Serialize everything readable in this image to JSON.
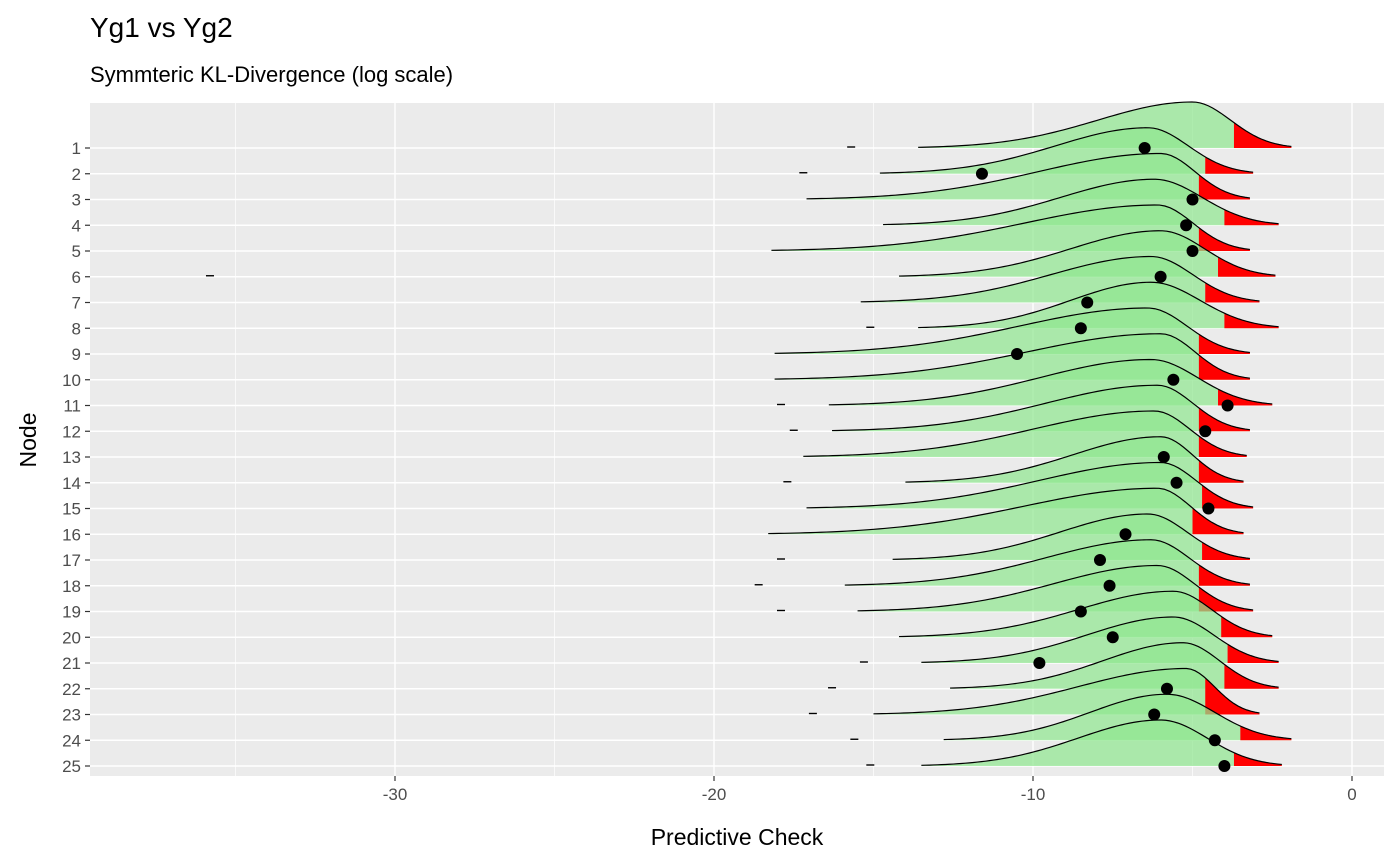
{
  "title": "Yg1 vs Yg2",
  "subtitle": "Symmteric KL-Divergence (log scale)",
  "chart_data": {
    "type": "ridgeline",
    "xlabel": "Predictive Check",
    "ylabel": "Node",
    "xlim": [
      -39.5,
      1
    ],
    "x_ticks": [
      -30,
      -20,
      -10,
      0
    ],
    "x_tick_labels": [
      "-30",
      "-20",
      "-10",
      "0"
    ],
    "grid": true,
    "colors": {
      "fill": "#90e690",
      "tail": "#ff0000",
      "point": "#000000",
      "panel": "#ebebeb"
    },
    "nodes": [
      {
        "label": "1",
        "observed": -6.5,
        "mode": -5.0,
        "min": -13.6,
        "max": -1.9,
        "tail_start": -3.7,
        "outlier": -15.7
      },
      {
        "label": "2",
        "observed": -11.6,
        "mode": -6.4,
        "min": -14.8,
        "max": -3.1,
        "tail_start": -4.6,
        "outlier": -17.2
      },
      {
        "label": "3",
        "observed": -5.0,
        "mode": -6.0,
        "min": -17.1,
        "max": -3.2,
        "tail_start": -4.8,
        "outlier": null
      },
      {
        "label": "4",
        "observed": -5.2,
        "mode": -6.2,
        "min": -14.7,
        "max": -2.3,
        "tail_start": -4.0,
        "outlier": null
      },
      {
        "label": "5",
        "observed": -5.0,
        "mode": -6.1,
        "min": -18.2,
        "max": -3.2,
        "tail_start": -4.8,
        "outlier": null
      },
      {
        "label": "6",
        "observed": -6.0,
        "mode": -6.0,
        "min": -14.2,
        "max": -2.4,
        "tail_start": -4.2,
        "outlier": -35.8
      },
      {
        "label": "7",
        "observed": -8.3,
        "mode": -6.3,
        "min": -15.4,
        "max": -2.9,
        "tail_start": -4.6,
        "outlier": null
      },
      {
        "label": "8",
        "observed": -8.5,
        "mode": -6.3,
        "min": -13.6,
        "max": -2.3,
        "tail_start": -4.0,
        "outlier": -15.1
      },
      {
        "label": "9",
        "observed": -10.5,
        "mode": -6.4,
        "min": -18.1,
        "max": -3.2,
        "tail_start": -4.8,
        "outlier": null
      },
      {
        "label": "10",
        "observed": -5.6,
        "mode": -6.0,
        "min": -18.1,
        "max": -3.2,
        "tail_start": -4.8,
        "outlier": null
      },
      {
        "label": "11",
        "observed": -3.9,
        "mode": -6.3,
        "min": -16.4,
        "max": -2.5,
        "tail_start": -4.2,
        "outlier": -17.9
      },
      {
        "label": "12",
        "observed": -4.6,
        "mode": -6.1,
        "min": -16.3,
        "max": -3.2,
        "tail_start": -4.8,
        "outlier": -17.5
      },
      {
        "label": "13",
        "observed": -5.9,
        "mode": -6.2,
        "min": -17.2,
        "max": -3.3,
        "tail_start": -4.8,
        "outlier": null
      },
      {
        "label": "14",
        "observed": -5.5,
        "mode": -6.0,
        "min": -14.0,
        "max": -3.4,
        "tail_start": -4.8,
        "outlier": -17.7
      },
      {
        "label": "15",
        "observed": -4.5,
        "mode": -6.0,
        "min": -17.1,
        "max": -3.1,
        "tail_start": -4.7,
        "outlier": null
      },
      {
        "label": "16",
        "observed": -7.1,
        "mode": -6.1,
        "min": -18.3,
        "max": -3.4,
        "tail_start": -5.0,
        "outlier": null
      },
      {
        "label": "17",
        "observed": -7.9,
        "mode": -6.4,
        "min": -14.4,
        "max": -3.2,
        "tail_start": -4.7,
        "outlier": -17.9
      },
      {
        "label": "18",
        "observed": -7.6,
        "mode": -6.3,
        "min": -15.9,
        "max": -3.2,
        "tail_start": -4.8,
        "outlier": -18.6
      },
      {
        "label": "19",
        "observed": -8.5,
        "mode": -6.1,
        "min": -15.5,
        "max": -3.1,
        "tail_start": -4.8,
        "outlier": -17.9
      },
      {
        "label": "20",
        "observed": -7.5,
        "mode": -5.6,
        "min": -14.2,
        "max": -2.5,
        "tail_start": -4.1,
        "outlier": null
      },
      {
        "label": "21",
        "observed": -9.8,
        "mode": -5.6,
        "min": -13.5,
        "max": -2.3,
        "tail_start": -3.9,
        "outlier": -15.3
      },
      {
        "label": "22",
        "observed": -5.8,
        "mode": -5.3,
        "min": -12.6,
        "max": -2.3,
        "tail_start": -4.0,
        "outlier": -16.3
      },
      {
        "label": "23",
        "observed": -6.2,
        "mode": -5.2,
        "min": -15.0,
        "max": -2.9,
        "tail_start": -4.6,
        "outlier": -16.9
      },
      {
        "label": "24",
        "observed": -4.3,
        "mode": -5.8,
        "min": -12.8,
        "max": -1.9,
        "tail_start": -3.5,
        "outlier": -15.6
      },
      {
        "label": "25",
        "observed": -4.0,
        "mode": -6.0,
        "min": -13.5,
        "max": -2.2,
        "tail_start": -3.7,
        "outlier": -15.1
      }
    ]
  }
}
